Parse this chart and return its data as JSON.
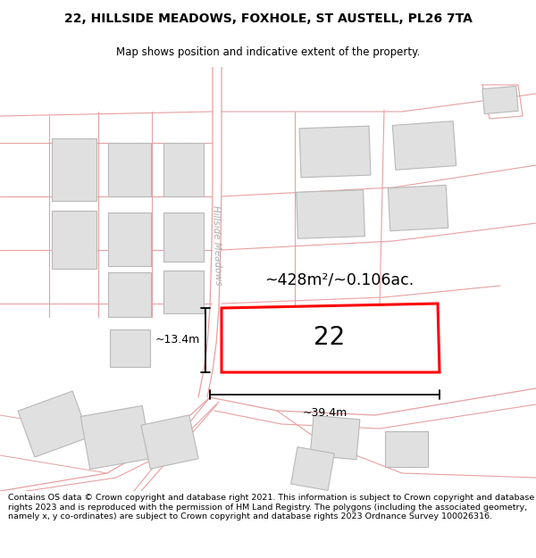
{
  "title": "22, HILLSIDE MEADOWS, FOXHOLE, ST AUSTELL, PL26 7TA",
  "subtitle": "Map shows position and indicative extent of the property.",
  "footer": "Contains OS data © Crown copyright and database right 2021. This information is subject to Crown copyright and database rights 2023 and is reproduced with the permission of HM Land Registry. The polygons (including the associated geometry, namely x, y co-ordinates) are subject to Crown copyright and database rights 2023 Ordnance Survey 100026316.",
  "bg_color": "#ffffff",
  "road_line_color": "#e8a0a0",
  "road_line_color2": "#f0b8b8",
  "building_fill": "#e0e0e0",
  "building_edge": "#b8b8b8",
  "highlight_color": "#ff0000",
  "street_label_color": "#aaaaaa",
  "area_label": "~428m²/~0.106ac.",
  "number_label": "22",
  "dim_width": "~39.4m",
  "dim_height": "~13.4m",
  "street_name": "Hillside Meadows"
}
